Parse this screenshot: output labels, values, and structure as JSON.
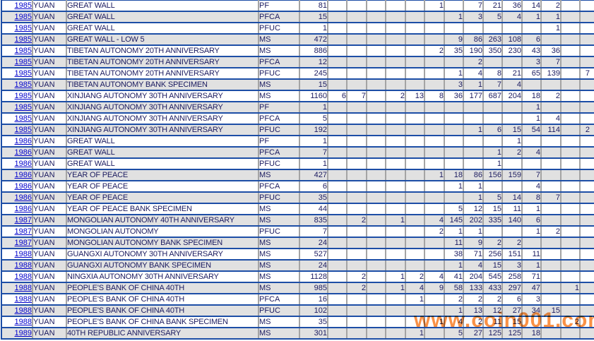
{
  "page": {
    "kind": "coin-census-population-table",
    "colors": {
      "row_separator_blue": "#1d4ea6",
      "column_line_gray": "#a4a4a4",
      "stripe_gray": "#e1e1e1",
      "text_navy": "#1b1b60",
      "year_link_blue": "#0000cc",
      "watermark_orange": "#f98b3c"
    }
  },
  "watermark": {
    "text": "www.coin001.com"
  },
  "table": {
    "grade_column_count": 14,
    "rows": [
      {
        "year": "1985",
        "denom": "YUAN",
        "desc": "GREAT WALL",
        "grade": "PF",
        "total": "81",
        "grades": [
          "",
          "",
          "",
          "",
          "",
          "1",
          "",
          "7",
          "21",
          "36",
          "14",
          "2",
          "",
          ""
        ]
      },
      {
        "year": "1985",
        "denom": "YUAN",
        "desc": "GREAT WALL",
        "grade": "PFCA",
        "total": "15",
        "grades": [
          "",
          "",
          "",
          "",
          "",
          "",
          "1",
          "3",
          "5",
          "4",
          "1",
          "1",
          "",
          ""
        ]
      },
      {
        "year": "1985",
        "denom": "YUAN",
        "desc": "GREAT WALL",
        "grade": "PFUC",
        "total": "1",
        "grades": [
          "",
          "",
          "",
          "",
          "",
          "",
          "",
          "",
          "",
          "",
          "",
          "1",
          "",
          ""
        ]
      },
      {
        "year": "1985",
        "denom": "YUAN",
        "desc": "GREAT WALL - LOW 5",
        "grade": "MS",
        "total": "472",
        "grades": [
          "",
          "",
          "",
          "",
          "",
          "",
          "9",
          "86",
          "263",
          "108",
          "6",
          "",
          "",
          ""
        ]
      },
      {
        "year": "1985",
        "denom": "YUAN",
        "desc": "TIBETAN AUTONOMY 20TH ANNIVERSARY",
        "grade": "MS",
        "total": "886",
        "grades": [
          "",
          "",
          "",
          "",
          "",
          "2",
          "35",
          "190",
          "350",
          "230",
          "43",
          "36",
          "",
          ""
        ]
      },
      {
        "year": "1985",
        "denom": "YUAN",
        "desc": "TIBETAN AUTONOMY 20TH ANNIVERSARY",
        "grade": "PFCA",
        "total": "12",
        "grades": [
          "",
          "",
          "",
          "",
          "",
          "",
          "",
          "2",
          "",
          "",
          "3",
          "7",
          "",
          ""
        ]
      },
      {
        "year": "1985",
        "denom": "YUAN",
        "desc": "TIBETAN AUTONOMY 20TH ANNIVERSARY",
        "grade": "PFUC",
        "total": "245",
        "grades": [
          "",
          "",
          "",
          "",
          "",
          "",
          "1",
          "4",
          "8",
          "21",
          "65",
          "139",
          "",
          "7"
        ]
      },
      {
        "year": "1985",
        "denom": "YUAN",
        "desc": "TIBETAN AUTONOMY BANK SPECIMEN",
        "grade": "MS",
        "total": "15",
        "grades": [
          "",
          "",
          "",
          "",
          "",
          "",
          "3",
          "1",
          "7",
          "4",
          "",
          "",
          "",
          ""
        ]
      },
      {
        "year": "1985",
        "denom": "YUAN",
        "desc": "XINJIANG AUTONOMY 30TH ANNIVERSARY",
        "grade": "MS",
        "total": "1160",
        "grades": [
          "6",
          "7",
          "",
          "2",
          "13",
          "8",
          "36",
          "177",
          "687",
          "204",
          "18",
          "2",
          "",
          ""
        ]
      },
      {
        "year": "1985",
        "denom": "YUAN",
        "desc": "XINJIANG AUTONOMY 30TH ANNIVERSARY",
        "grade": "PF",
        "total": "1",
        "grades": [
          "",
          "",
          "",
          "",
          "",
          "",
          "",
          "",
          "",
          "",
          "1",
          "",
          "",
          ""
        ]
      },
      {
        "year": "1985",
        "denom": "YUAN",
        "desc": "XINJIANG AUTONOMY 30TH ANNIVERSARY",
        "grade": "PFCA",
        "total": "5",
        "grades": [
          "",
          "",
          "",
          "",
          "",
          "",
          "",
          "",
          "",
          "",
          "1",
          "4",
          "",
          ""
        ]
      },
      {
        "year": "1985",
        "denom": "YUAN",
        "desc": "XINJIANG AUTONOMY 30TH ANNIVERSARY",
        "grade": "PFUC",
        "total": "192",
        "grades": [
          "",
          "",
          "",
          "",
          "",
          "",
          "",
          "1",
          "6",
          "15",
          "54",
          "114",
          "",
          "2"
        ]
      },
      {
        "year": "1986",
        "denom": "YUAN",
        "desc": "GREAT WALL",
        "grade": "PF",
        "total": "1",
        "grades": [
          "",
          "",
          "",
          "",
          "",
          "",
          "",
          "",
          "",
          "1",
          "",
          "",
          "",
          ""
        ]
      },
      {
        "year": "1986",
        "denom": "YUAN",
        "desc": "GREAT WALL",
        "grade": "PFCA",
        "total": "7",
        "grades": [
          "",
          "",
          "",
          "",
          "",
          "",
          "",
          "",
          "1",
          "2",
          "4",
          "",
          "",
          ""
        ]
      },
      {
        "year": "1986",
        "denom": "YUAN",
        "desc": "GREAT WALL",
        "grade": "PFUC",
        "total": "1",
        "grades": [
          "",
          "",
          "",
          "",
          "",
          "",
          "",
          "",
          "1",
          "",
          "",
          "",
          "",
          ""
        ]
      },
      {
        "year": "1986",
        "denom": "YUAN",
        "desc": "YEAR OF PEACE",
        "grade": "MS",
        "total": "427",
        "grades": [
          "",
          "",
          "",
          "",
          "",
          "1",
          "18",
          "86",
          "156",
          "159",
          "7",
          "",
          "",
          ""
        ]
      },
      {
        "year": "1986",
        "denom": "YUAN",
        "desc": "YEAR OF PEACE",
        "grade": "PFCA",
        "total": "6",
        "grades": [
          "",
          "",
          "",
          "",
          "",
          "",
          "1",
          "1",
          "",
          "",
          "4",
          "",
          "",
          ""
        ]
      },
      {
        "year": "1986",
        "denom": "YUAN",
        "desc": "YEAR OF PEACE",
        "grade": "PFUC",
        "total": "35",
        "grades": [
          "",
          "",
          "",
          "",
          "",
          "",
          "",
          "1",
          "5",
          "14",
          "8",
          "7",
          "",
          ""
        ]
      },
      {
        "year": "1986",
        "denom": "YUAN",
        "desc": "YEAR OF PEACE BANK SPECIMEN",
        "grade": "MS",
        "total": "44",
        "grades": [
          "",
          "",
          "",
          "",
          "",
          "",
          "5",
          "12",
          "15",
          "11",
          "1",
          "",
          "",
          ""
        ]
      },
      {
        "year": "1987",
        "denom": "YUAN",
        "desc": "MONGOLIAN AUTONOMY 40TH ANNIVERSARY",
        "grade": "MS",
        "total": "835",
        "grades": [
          "",
          "2",
          "",
          "1",
          "",
          "4",
          "145",
          "202",
          "335",
          "140",
          "6",
          "",
          "",
          ""
        ]
      },
      {
        "year": "1987",
        "denom": "YUAN",
        "desc": "MONGOLIAN AUTONOMY",
        "grade": "PFUC",
        "total": "7",
        "grades": [
          "",
          "",
          "",
          "",
          "",
          "2",
          "1",
          "1",
          "",
          "",
          "1",
          "2",
          "",
          ""
        ]
      },
      {
        "year": "1987",
        "denom": "YUAN",
        "desc": "MONGOLIAN AUTONOMY BANK SPECIMEN",
        "grade": "MS",
        "total": "24",
        "grades": [
          "",
          "",
          "",
          "",
          "",
          "",
          "11",
          "9",
          "2",
          "2",
          "",
          "",
          "",
          ""
        ]
      },
      {
        "year": "1988",
        "denom": "YUAN",
        "desc": "GUANGXI AUTONOMY 30TH ANNIVERSARY",
        "grade": "MS",
        "total": "527",
        "grades": [
          "",
          "",
          "",
          "",
          "",
          "",
          "38",
          "71",
          "256",
          "151",
          "11",
          "",
          "",
          ""
        ]
      },
      {
        "year": "1988",
        "denom": "YUAN",
        "desc": "GUANGXI AUTONOMY BANK SPECIMEN",
        "grade": "MS",
        "total": "24",
        "grades": [
          "",
          "",
          "",
          "",
          "",
          "",
          "1",
          "4",
          "15",
          "3",
          "1",
          "",
          "",
          ""
        ]
      },
      {
        "year": "1988",
        "denom": "YUAN",
        "desc": "NINGXIA AUTONOMY 30TH ANNIVERSARY",
        "grade": "MS",
        "total": "1128",
        "grades": [
          "",
          "2",
          "",
          "1",
          "2",
          "4",
          "41",
          "204",
          "545",
          "258",
          "71",
          "",
          "",
          ""
        ]
      },
      {
        "year": "1988",
        "denom": "YUAN",
        "desc": "PEOPLE'S BANK OF CHINA 40TH",
        "grade": "MS",
        "total": "985",
        "grades": [
          "",
          "2",
          "",
          "1",
          "4",
          "9",
          "58",
          "133",
          "433",
          "297",
          "47",
          "",
          "1",
          ""
        ]
      },
      {
        "year": "1988",
        "denom": "YUAN",
        "desc": "PEOPLE'S BANK OF CHINA 40TH",
        "grade": "PFCA",
        "total": "16",
        "grades": [
          "",
          "",
          "",
          "",
          "1",
          "",
          "2",
          "2",
          "2",
          "6",
          "3",
          "",
          "",
          ""
        ]
      },
      {
        "year": "1988",
        "denom": "YUAN",
        "desc": "PEOPLE'S BANK OF CHINA 40TH",
        "grade": "PFUC",
        "total": "102",
        "grades": [
          "",
          "",
          "",
          "",
          "",
          "",
          "1",
          "13",
          "12",
          "27",
          "34",
          "15",
          "",
          ""
        ]
      },
      {
        "year": "1988",
        "denom": "YUAN",
        "desc": "PEOPLE'S BANK OF CHINA BANK SPECIMEN",
        "grade": "MS",
        "total": "35",
        "grades": [
          "",
          "",
          "",
          "",
          "",
          "1",
          "4",
          "2",
          "11",
          "15",
          "",
          "",
          "2",
          ""
        ]
      },
      {
        "year": "1989",
        "denom": "YUAN",
        "desc": "40TH REPUBLIC ANNIVERSARY",
        "grade": "MS",
        "total": "301",
        "grades": [
          "",
          "",
          "",
          "",
          "1",
          "",
          "5",
          "27",
          "125",
          "125",
          "18",
          "",
          "",
          ""
        ]
      }
    ]
  }
}
